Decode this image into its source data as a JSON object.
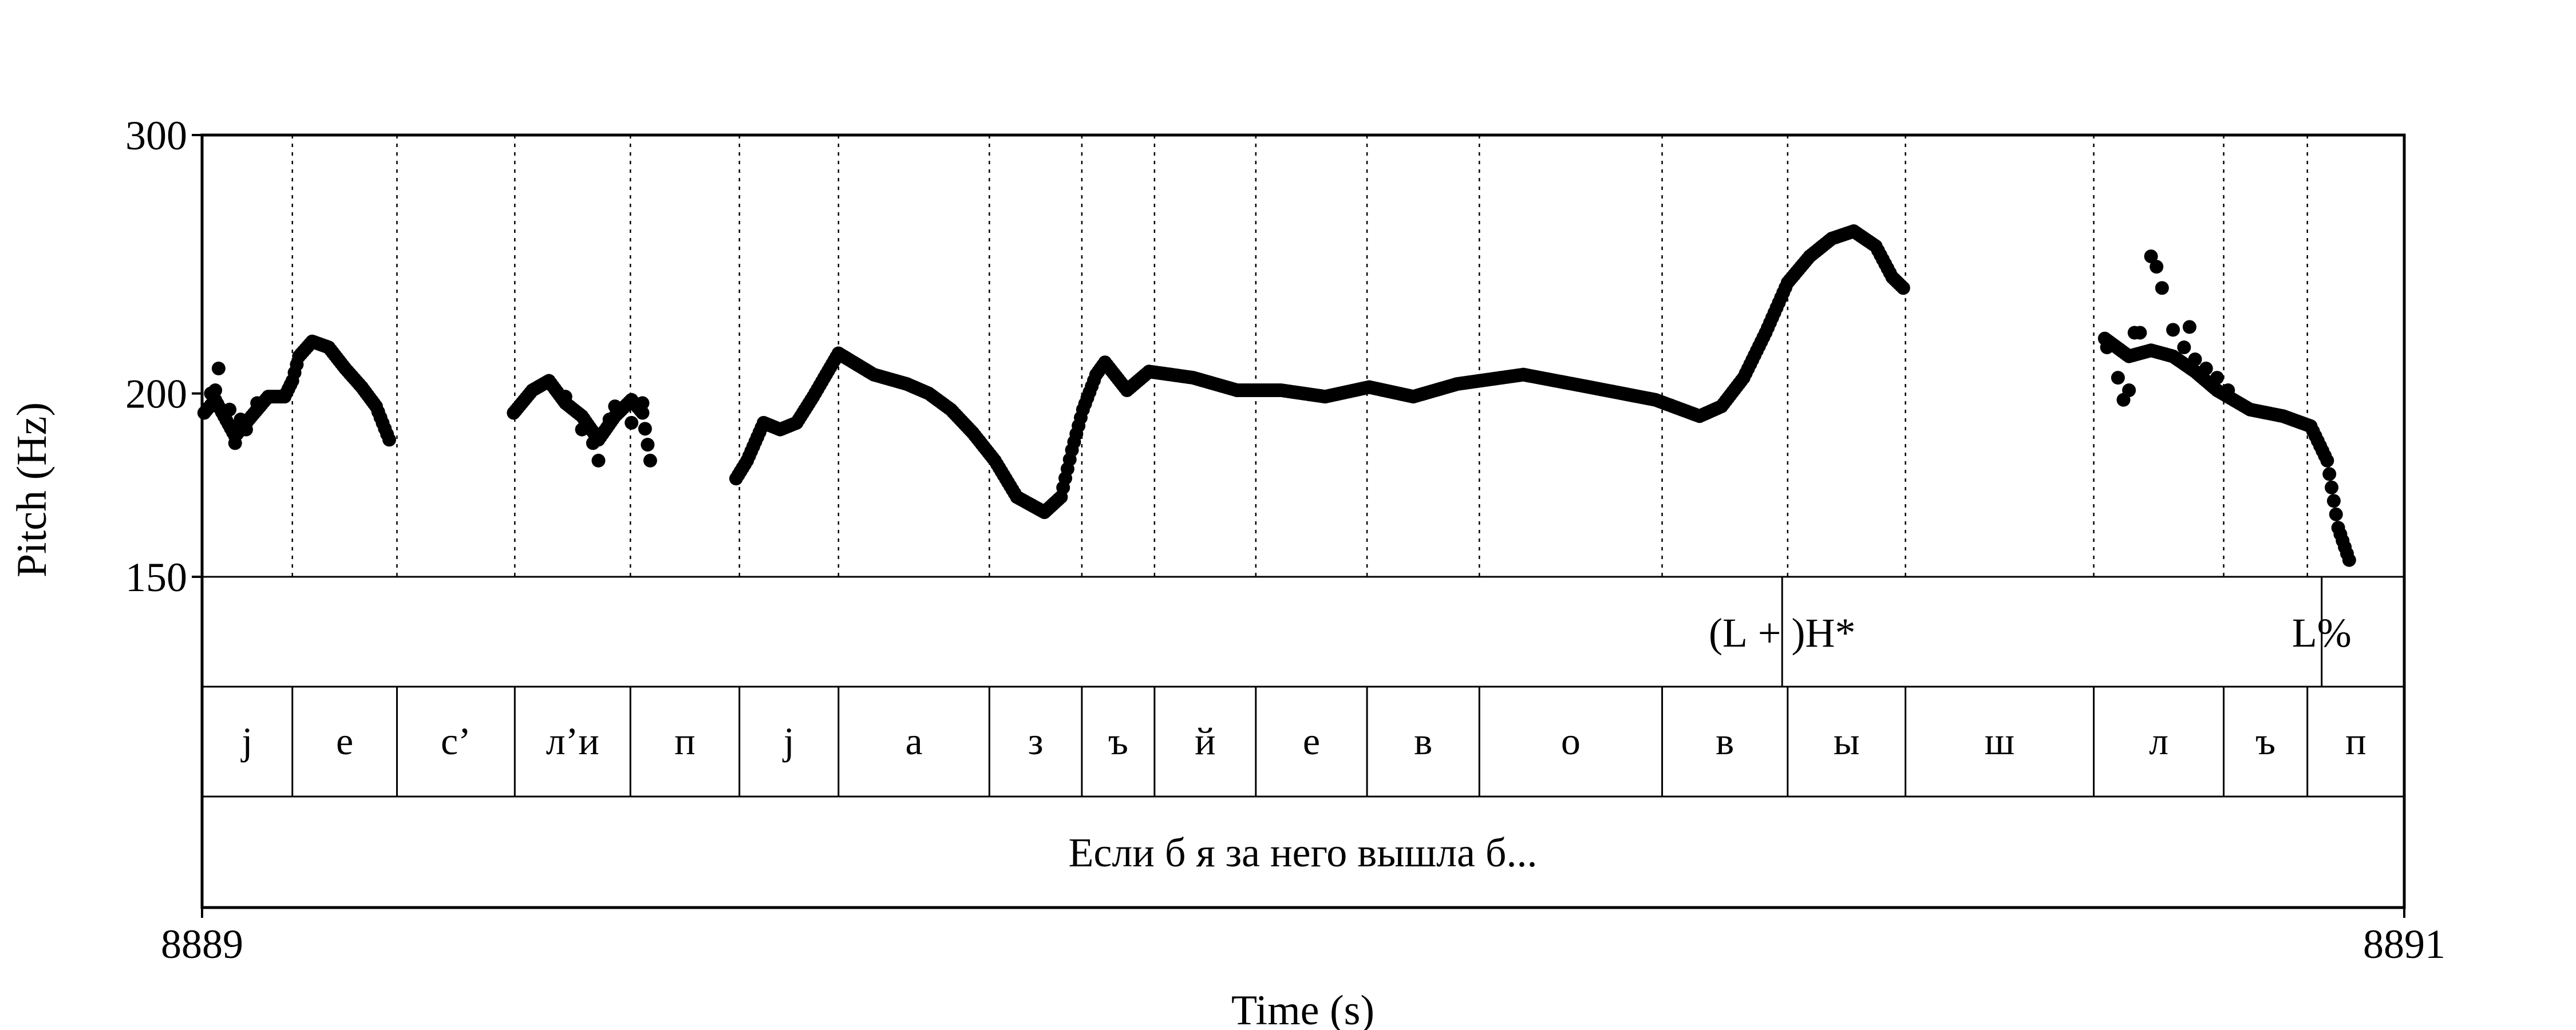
{
  "chart_data": {
    "type": "scatter",
    "ylabel": "Pitch (Hz)",
    "xlabel": "Time (s)",
    "xlim": [
      8889,
      8891
    ],
    "ylim": [
      150,
      300
    ],
    "yscale": "log",
    "x_ticks": [
      "8889",
      "8891"
    ],
    "y_ticks": [
      {
        "value": 150,
        "label": "150"
      },
      {
        "value": 200,
        "label": "200"
      },
      {
        "value": 300,
        "label": "300"
      }
    ],
    "series": [
      {
        "marker_color": "#000000",
        "contours": [
          {
            "points": [
              [
                0.002,
                194
              ],
              [
                0.012,
                198
              ],
              [
                0.02,
                193
              ],
              [
                0.03,
                187
              ],
              [
                0.045,
                193
              ],
              [
                0.06,
                199
              ],
              [
                0.075,
                199
              ],
              [
                0.082,
                204
              ],
              [
                0.088,
                212
              ],
              [
                0.1,
                217
              ],
              [
                0.115,
                215
              ],
              [
                0.13,
                208
              ],
              [
                0.145,
                202
              ],
              [
                0.158,
                196
              ],
              [
                0.17,
                186
              ]
            ],
            "step": 0.002
          },
          {
            "points": [
              [
                0.283,
                194
              ],
              [
                0.3,
                201
              ],
              [
                0.315,
                204
              ],
              [
                0.33,
                197
              ],
              [
                0.345,
                193
              ],
              [
                0.36,
                186
              ],
              [
                0.375,
                193
              ],
              [
                0.39,
                198
              ],
              [
                0.4,
                194
              ],
              [
                0.407,
                180
              ]
            ],
            "step": 0.002
          },
          {
            "points": [
              [
                0.485,
                175
              ],
              [
                0.495,
                180
              ],
              [
                0.51,
                191
              ],
              [
                0.525,
                189
              ],
              [
                0.54,
                191
              ],
              [
                0.555,
                199
              ],
              [
                0.565,
                205
              ],
              [
                0.578,
                213
              ],
              [
                0.587,
                211
              ],
              [
                0.61,
                206
              ],
              [
                0.64,
                203
              ],
              [
                0.66,
                200
              ],
              [
                0.68,
                195
              ],
              [
                0.7,
                188
              ],
              [
                0.72,
                180
              ],
              [
                0.74,
                170
              ],
              [
                0.765,
                166
              ],
              [
                0.78,
                170
              ],
              [
                0.79,
                183
              ],
              [
                0.8,
                195
              ],
              [
                0.812,
                206
              ],
              [
                0.82,
                210
              ],
              [
                0.84,
                201
              ],
              [
                0.86,
                207
              ],
              [
                0.9,
                205
              ],
              [
                0.94,
                201
              ],
              [
                0.98,
                201
              ],
              [
                1.02,
                199
              ],
              [
                1.06,
                202
              ],
              [
                1.1,
                199
              ],
              [
                1.14,
                203
              ],
              [
                1.2,
                206
              ],
              [
                1.26,
                202
              ],
              [
                1.32,
                198
              ],
              [
                1.36,
                193
              ],
              [
                1.38,
                196
              ],
              [
                1.4,
                205
              ],
              [
                1.42,
                220
              ],
              [
                1.44,
                238
              ],
              [
                1.46,
                248
              ],
              [
                1.48,
                255
              ],
              [
                1.5,
                258
              ],
              [
                1.52,
                252
              ],
              [
                1.535,
                240
              ],
              [
                1.545,
                236
              ]
            ],
            "step": 0.002
          },
          {
            "points": [
              [
                1.728,
                218
              ],
              [
                1.75,
                212
              ],
              [
                1.77,
                214
              ],
              [
                1.79,
                212
              ],
              [
                1.81,
                207
              ],
              [
                1.83,
                201
              ],
              [
                1.86,
                195
              ],
              [
                1.89,
                193
              ],
              [
                1.915,
                190
              ],
              [
                1.93,
                180
              ],
              [
                1.94,
                162
              ],
              [
                1.95,
                154
              ]
            ],
            "step": 0.002
          }
        ],
        "scatter": [
          [
            0.008,
            200
          ],
          [
            0.012,
            201
          ],
          [
            0.015,
            208
          ],
          [
            0.025,
            195
          ],
          [
            0.03,
            185
          ],
          [
            0.04,
            189
          ],
          [
            0.035,
            192
          ],
          [
            0.05,
            197
          ],
          [
            0.33,
            199
          ],
          [
            0.345,
            189
          ],
          [
            0.355,
            185
          ],
          [
            0.37,
            192
          ],
          [
            0.375,
            196
          ],
          [
            0.39,
            191
          ],
          [
            0.4,
            197
          ],
          [
            0.395,
            196
          ],
          [
            0.36,
            180
          ],
          [
            1.73,
            215
          ],
          [
            1.74,
            205
          ],
          [
            1.745,
            198
          ],
          [
            1.75,
            201
          ],
          [
            1.76,
            220
          ],
          [
            1.77,
            248
          ],
          [
            1.775,
            244
          ],
          [
            1.78,
            236
          ],
          [
            1.79,
            221
          ],
          [
            1.8,
            215
          ],
          [
            1.805,
            222
          ],
          [
            1.81,
            211
          ],
          [
            1.82,
            208
          ],
          [
            1.83,
            205
          ],
          [
            1.84,
            201
          ],
          [
            1.755,
            220
          ]
        ]
      }
    ]
  },
  "tones": {
    "labels": [
      {
        "time": 1.435,
        "text": "(L + )H*"
      },
      {
        "time": 1.925,
        "text": "L%"
      }
    ],
    "boundaries": [
      1.435,
      1.925
    ]
  },
  "segments": [
    {
      "start": 0.0,
      "end": 0.082,
      "label": "j"
    },
    {
      "start": 0.082,
      "end": 0.177,
      "label": "е"
    },
    {
      "start": 0.177,
      "end": 0.284,
      "label": "с’"
    },
    {
      "start": 0.284,
      "end": 0.389,
      "label": "л’и"
    },
    {
      "start": 0.389,
      "end": 0.488,
      "label": "п"
    },
    {
      "start": 0.488,
      "end": 0.578,
      "label": "j"
    },
    {
      "start": 0.578,
      "end": 0.715,
      "label": "а"
    },
    {
      "start": 0.715,
      "end": 0.799,
      "label": "з"
    },
    {
      "start": 0.799,
      "end": 0.865,
      "label": "ъ"
    },
    {
      "start": 0.865,
      "end": 0.957,
      "label": "й"
    },
    {
      "start": 0.957,
      "end": 1.058,
      "label": "е"
    },
    {
      "start": 1.058,
      "end": 1.16,
      "label": "в"
    },
    {
      "start": 1.16,
      "end": 1.326,
      "label": "о"
    },
    {
      "start": 1.326,
      "end": 1.44,
      "label": "в"
    },
    {
      "start": 1.44,
      "end": 1.547,
      "label": "ы"
    },
    {
      "start": 1.547,
      "end": 1.718,
      "label": "ш"
    },
    {
      "start": 1.718,
      "end": 1.836,
      "label": "л"
    },
    {
      "start": 1.836,
      "end": 1.912,
      "label": "ъ"
    },
    {
      "start": 1.912,
      "end": 2.0,
      "label": "п"
    }
  ],
  "utterance": {
    "text": "Если б я за него вышла б..."
  }
}
